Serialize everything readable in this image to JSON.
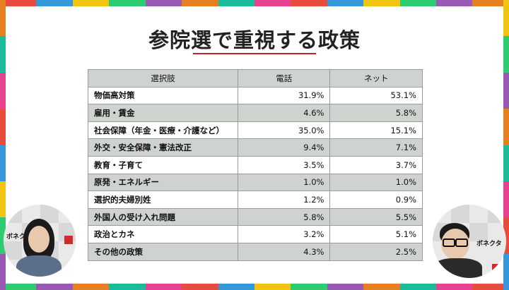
{
  "slide": {
    "title": "参院選で重視する政策"
  },
  "table": {
    "headers": [
      "選択肢",
      "電話",
      "ネット"
    ],
    "rows": [
      {
        "policy": "物価高対策",
        "phone": "31.9%",
        "net": "53.1%"
      },
      {
        "policy": "雇用・賃金",
        "phone": "4.6%",
        "net": "5.8%"
      },
      {
        "policy": "社会保障（年金・医療・介護など）",
        "phone": "35.0%",
        "net": "15.1%"
      },
      {
        "policy": "外交・安全保障・憲法改正",
        "phone": "9.4%",
        "net": "7.1%"
      },
      {
        "policy": "教育・子育て",
        "phone": "3.5%",
        "net": "3.7%"
      },
      {
        "policy": "原発・エネルギー",
        "phone": "1.0%",
        "net": "1.0%"
      },
      {
        "policy": "選択的夫婦別姓",
        "phone": "1.2%",
        "net": "0.9%"
      },
      {
        "policy": "外国人の受け入れ問題",
        "phone": "5.8%",
        "net": "5.5%"
      },
      {
        "policy": "政治とカネ",
        "phone": "3.2%",
        "net": "5.1%"
      },
      {
        "policy": "その他の政策",
        "phone": "4.3%",
        "net": "2.5%"
      }
    ]
  },
  "presenters": {
    "left_logo": "ボネクタ",
    "right_logo": "ボネクタ"
  },
  "colors": {
    "frame": [
      "#e74c3c",
      "#3498db",
      "#f1c40f",
      "#2ecc71",
      "#9b59b6",
      "#e67e22",
      "#1abc9c",
      "#e84393"
    ],
    "title_underline": "#c0272d",
    "row_shade": "#cfd3cf"
  }
}
